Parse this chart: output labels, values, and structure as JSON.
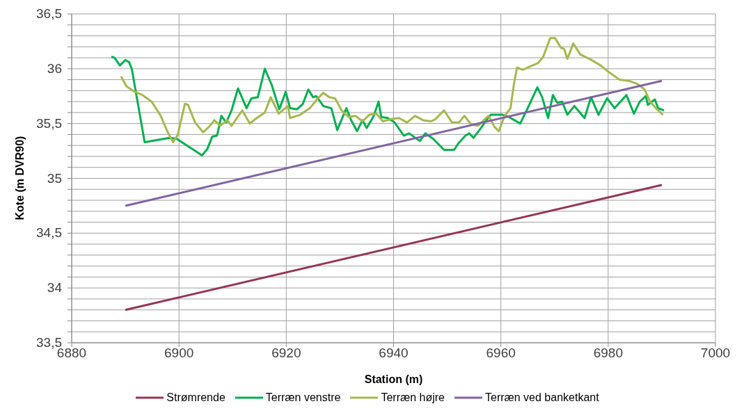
{
  "chart_data": {
    "type": "line",
    "xlabel": "Station (m)",
    "ylabel": "Kote (m DVR90)",
    "xlim": [
      6880,
      7000
    ],
    "xticks": [
      6880,
      6900,
      6920,
      6940,
      6960,
      6980,
      7000
    ],
    "ylim": [
      33.5,
      36.5
    ],
    "yticks": [
      {
        "value": 33.5,
        "label": "33,5"
      },
      {
        "value": 33.6,
        "label": null
      },
      {
        "value": 33.7,
        "label": null
      },
      {
        "value": 33.8,
        "label": null
      },
      {
        "value": 33.9,
        "label": null
      },
      {
        "value": 34,
        "label": "34"
      },
      {
        "value": 34.1,
        "label": null
      },
      {
        "value": 34.2,
        "label": null
      },
      {
        "value": 34.3,
        "label": null
      },
      {
        "value": 34.4,
        "label": null
      },
      {
        "value": 34.5,
        "label": "34,5"
      },
      {
        "value": 34.6,
        "label": null
      },
      {
        "value": 34.7,
        "label": null
      },
      {
        "value": 34.8,
        "label": null
      },
      {
        "value": 34.9,
        "label": null
      },
      {
        "value": 35,
        "label": "35"
      },
      {
        "value": 35.1,
        "label": null
      },
      {
        "value": 35.2,
        "label": null
      },
      {
        "value": 35.3,
        "label": null
      },
      {
        "value": 35.4,
        "label": null
      },
      {
        "value": 35.5,
        "label": "35,5"
      },
      {
        "value": 35.6,
        "label": null
      },
      {
        "value": 35.7,
        "label": null
      },
      {
        "value": 35.8,
        "label": null
      },
      {
        "value": 35.9,
        "label": null
      },
      {
        "value": 36,
        "label": "36"
      },
      {
        "value": 36.1,
        "label": null
      },
      {
        "value": 36.2,
        "label": null
      },
      {
        "value": 36.3,
        "label": null
      },
      {
        "value": 36.4,
        "label": null
      },
      {
        "value": 36.5,
        "label": "36,5"
      }
    ],
    "grid": true,
    "legend": "bottom",
    "marker": "none",
    "line_style": "solid",
    "series": [
      {
        "name": "Strømrende",
        "color": "#953553",
        "x": [
          6890,
          6990
        ],
        "values": [
          33.8,
          34.94
        ]
      },
      {
        "name": "Terræn venstre",
        "color": "#00b050",
        "x": [
          6887.4,
          6888.0,
          6889.0,
          6890.0,
          6890.7,
          6891.2,
          6893.6,
          6898.3,
          6899.6,
          6904.3,
          6905.3,
          6906.2,
          6907.1,
          6907.9,
          6908.8,
          6909.8,
          6911.0,
          6912.6,
          6913.5,
          6914.7,
          6916.0,
          6917.3,
          6918.7,
          6919.9,
          6920.7,
          6922.0,
          6923.1,
          6924.1,
          6925.0,
          6925.6,
          6926.9,
          6928.4,
          6929.5,
          6931.2,
          6932.1,
          6933.2,
          6934.2,
          6935.0,
          6936.3,
          6937.2,
          6937.7,
          6938.9,
          6940.2,
          6941.9,
          6942.9,
          6944.9,
          6945.9,
          6947.4,
          6949.4,
          6951.3,
          6952.1,
          6953.4,
          6954.1,
          6954.9,
          6956.0,
          6957.3,
          6958.1,
          6960.3,
          6961.5,
          6963.6,
          6965.0,
          6966.8,
          6967.7,
          6968.8,
          6969.7,
          6970.5,
          6971.4,
          6972.4,
          6973.7,
          6975.6,
          6976.8,
          6978.2,
          6979.8,
          6981.2,
          6983.4,
          6984.8,
          6985.9,
          6987.0,
          6987.4,
          6988.7,
          6989.3,
          6990.4
        ],
        "values": [
          36.11,
          36.1,
          36.03,
          36.08,
          36.06,
          36.0,
          35.33,
          35.37,
          35.36,
          35.21,
          35.27,
          35.38,
          35.39,
          35.57,
          35.51,
          35.62,
          35.82,
          35.64,
          35.73,
          35.74,
          36.0,
          35.85,
          35.63,
          35.79,
          35.64,
          35.63,
          35.68,
          35.81,
          35.74,
          35.75,
          35.66,
          35.64,
          35.44,
          35.64,
          35.53,
          35.43,
          35.53,
          35.46,
          35.57,
          35.7,
          35.56,
          35.55,
          35.51,
          35.39,
          35.41,
          35.34,
          35.41,
          35.36,
          35.26,
          35.26,
          35.32,
          35.39,
          35.41,
          35.37,
          35.44,
          35.53,
          35.58,
          35.58,
          35.56,
          35.5,
          35.64,
          35.83,
          35.74,
          35.55,
          35.76,
          35.69,
          35.7,
          35.58,
          35.66,
          35.55,
          35.74,
          35.58,
          35.73,
          35.64,
          35.76,
          35.59,
          35.7,
          35.75,
          35.67,
          35.72,
          35.64,
          35.62
        ]
      },
      {
        "name": "Terræn højre",
        "color": "#a5b84e",
        "x": [
          6889.2,
          6890.2,
          6891.7,
          6893.2,
          6894.9,
          6896.6,
          6897.9,
          6898.9,
          6899.8,
          6901.1,
          6901.7,
          6903.0,
          6904.5,
          6905.6,
          6906.6,
          6907.7,
          6909.0,
          6909.8,
          6911.8,
          6913.2,
          6914.5,
          6916.0,
          6917.1,
          6918.6,
          6920.3,
          6920.7,
          6922.6,
          6924.4,
          6925.9,
          6926.9,
          6928.0,
          6929.1,
          6930.3,
          6931.6,
          6932.9,
          6934.2,
          6935.5,
          6936.8,
          6938.0,
          6939.5,
          6941.0,
          6942.5,
          6944.0,
          6945.5,
          6947.0,
          6947.8,
          6949.4,
          6950.9,
          6952.2,
          6953.2,
          6954.5,
          6955.8,
          6956.8,
          6957.7,
          6958.8,
          6959.6,
          6960.7,
          6961.8,
          6962.4,
          6963.0,
          6964.1,
          6965.4,
          6966.9,
          6967.9,
          6969.2,
          6970.1,
          6971.2,
          6971.8,
          6972.4,
          6973.5,
          6974.8,
          6976.5,
          6978.6,
          6980.1,
          6982.1,
          6983.8,
          6985.5,
          6986.8,
          6987.8,
          6988.9,
          6990.2
        ],
        "values": [
          35.93,
          35.84,
          35.79,
          35.76,
          35.7,
          35.57,
          35.42,
          35.33,
          35.4,
          35.68,
          35.67,
          35.51,
          35.42,
          35.47,
          35.53,
          35.48,
          35.53,
          35.48,
          35.62,
          35.5,
          35.55,
          35.6,
          35.74,
          35.59,
          35.66,
          35.55,
          35.58,
          35.64,
          35.73,
          35.78,
          35.74,
          35.73,
          35.62,
          35.56,
          35.57,
          35.52,
          35.58,
          35.59,
          35.52,
          35.54,
          35.55,
          35.51,
          35.57,
          35.53,
          35.52,
          35.54,
          35.62,
          35.51,
          35.51,
          35.57,
          35.49,
          35.48,
          35.53,
          35.57,
          35.47,
          35.43,
          35.57,
          35.64,
          35.85,
          36.01,
          35.99,
          36.02,
          36.05,
          36.11,
          36.28,
          36.28,
          36.19,
          36.18,
          36.09,
          36.23,
          36.13,
          36.09,
          36.03,
          35.97,
          35.9,
          35.89,
          35.86,
          35.81,
          35.7,
          35.64,
          35.58
        ]
      },
      {
        "name": "Terræn ved banketkant",
        "color": "#8064a2",
        "x": [
          6890,
          6990
        ],
        "values": [
          34.75,
          35.89
        ]
      }
    ]
  }
}
